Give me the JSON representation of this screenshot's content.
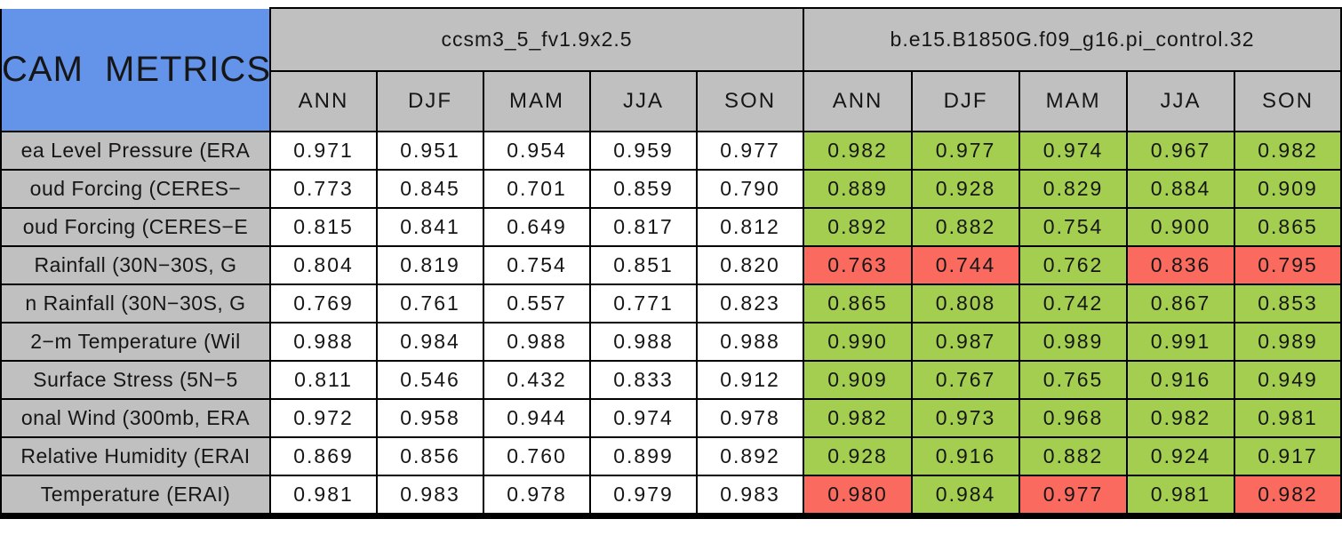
{
  "chart_data": {
    "type": "table",
    "title": "CAM METRICS",
    "column_groups": [
      "ccsm3_5_fv1.9x2.5",
      "b.e15.B1850G.f09_g16.pi_control.32"
    ],
    "seasons": [
      "ANN",
      "DJF",
      "MAM",
      "JJA",
      "SON"
    ],
    "rows": [
      {
        "label": "ea Level Pressure (ERA",
        "model1": [
          "0.971",
          "0.951",
          "0.954",
          "0.959",
          "0.977"
        ],
        "model2": [
          "0.982",
          "0.977",
          "0.974",
          "0.967",
          "0.982"
        ],
        "model2_colors": [
          "green",
          "green",
          "green",
          "green",
          "green"
        ]
      },
      {
        "label": "oud Forcing (CERES−",
        "model1": [
          "0.773",
          "0.845",
          "0.701",
          "0.859",
          "0.790"
        ],
        "model2": [
          "0.889",
          "0.928",
          "0.829",
          "0.884",
          "0.909"
        ],
        "model2_colors": [
          "green",
          "green",
          "green",
          "green",
          "green"
        ]
      },
      {
        "label": "oud Forcing (CERES−E",
        "model1": [
          "0.815",
          "0.841",
          "0.649",
          "0.817",
          "0.812"
        ],
        "model2": [
          "0.892",
          "0.882",
          "0.754",
          "0.900",
          "0.865"
        ],
        "model2_colors": [
          "green",
          "green",
          "green",
          "green",
          "green"
        ]
      },
      {
        "label": "Rainfall (30N−30S, G",
        "model1": [
          "0.804",
          "0.819",
          "0.754",
          "0.851",
          "0.820"
        ],
        "model2": [
          "0.763",
          "0.744",
          "0.762",
          "0.836",
          "0.795"
        ],
        "model2_colors": [
          "red",
          "red",
          "green",
          "red",
          "red"
        ]
      },
      {
        "label": "n Rainfall (30N−30S, G",
        "model1": [
          "0.769",
          "0.761",
          "0.557",
          "0.771",
          "0.823"
        ],
        "model2": [
          "0.865",
          "0.808",
          "0.742",
          "0.867",
          "0.853"
        ],
        "model2_colors": [
          "green",
          "green",
          "green",
          "green",
          "green"
        ]
      },
      {
        "label": "2−m Temperature (Wil",
        "model1": [
          "0.988",
          "0.984",
          "0.988",
          "0.988",
          "0.988"
        ],
        "model2": [
          "0.990",
          "0.987",
          "0.989",
          "0.991",
          "0.989"
        ],
        "model2_colors": [
          "green",
          "green",
          "green",
          "green",
          "green"
        ]
      },
      {
        "label": "Surface Stress (5N−5",
        "model1": [
          "0.811",
          "0.546",
          "0.432",
          "0.833",
          "0.912"
        ],
        "model2": [
          "0.909",
          "0.767",
          "0.765",
          "0.916",
          "0.949"
        ],
        "model2_colors": [
          "green",
          "green",
          "green",
          "green",
          "green"
        ]
      },
      {
        "label": "onal Wind (300mb, ERA",
        "model1": [
          "0.972",
          "0.958",
          "0.944",
          "0.974",
          "0.978"
        ],
        "model2": [
          "0.982",
          "0.973",
          "0.968",
          "0.982",
          "0.981"
        ],
        "model2_colors": [
          "green",
          "green",
          "green",
          "green",
          "green"
        ]
      },
      {
        "label": "Relative Humidity (ERAI",
        "model1": [
          "0.869",
          "0.856",
          "0.760",
          "0.899",
          "0.892"
        ],
        "model2": [
          "0.928",
          "0.916",
          "0.882",
          "0.924",
          "0.917"
        ],
        "model2_colors": [
          "green",
          "green",
          "green",
          "green",
          "green"
        ]
      },
      {
        "label": "Temperature (ERAI)",
        "model1": [
          "0.981",
          "0.983",
          "0.978",
          "0.979",
          "0.983"
        ],
        "model2": [
          "0.980",
          "0.984",
          "0.977",
          "0.981",
          "0.982"
        ],
        "model2_colors": [
          "red",
          "green",
          "red",
          "green",
          "red"
        ]
      }
    ],
    "colors": {
      "green": "#A3CE50",
      "red": "#FB6A5E",
      "grey": "#C0C0C0",
      "blue": "#6494EA",
      "white": "#FFFFFF"
    },
    "layout": {
      "grid": "on",
      "legend": "none"
    }
  }
}
